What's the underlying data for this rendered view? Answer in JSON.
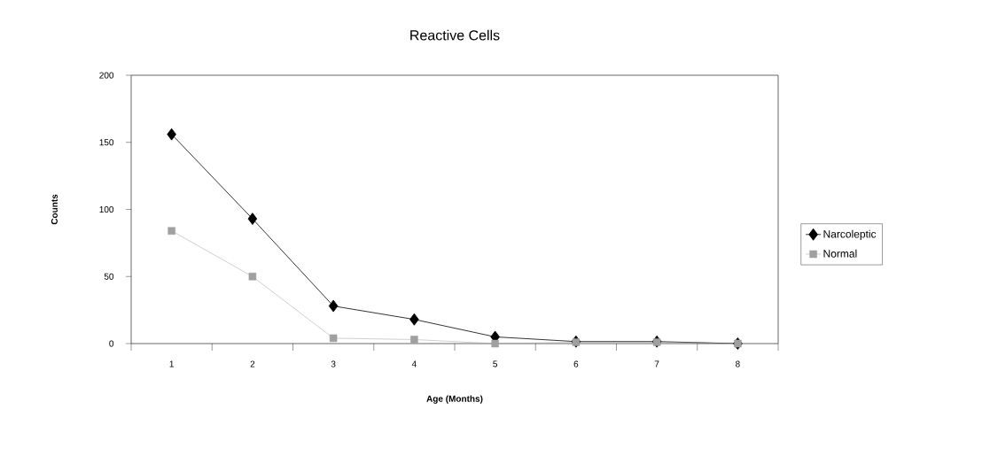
{
  "chart_data": {
    "type": "line",
    "title": "Reactive Cells",
    "xlabel": "Age (Months)",
    "ylabel": "Counts",
    "categories": [
      "1",
      "2",
      "3",
      "4",
      "5",
      "6",
      "7",
      "8"
    ],
    "series": [
      {
        "name": "Narcoleptic",
        "color": "#000000",
        "marker": "diamond",
        "values": [
          156,
          93,
          28,
          18,
          5,
          1.5,
          1.5,
          0
        ]
      },
      {
        "name": "Normal",
        "color": "#a0a0a0",
        "marker": "square",
        "values": [
          84,
          50,
          4,
          3,
          0,
          1,
          1,
          0
        ]
      }
    ],
    "ylim": [
      0,
      200
    ],
    "yticks": [
      0,
      50,
      100,
      150,
      200
    ],
    "grid": false,
    "legend": "right",
    "line_style": "solid"
  }
}
